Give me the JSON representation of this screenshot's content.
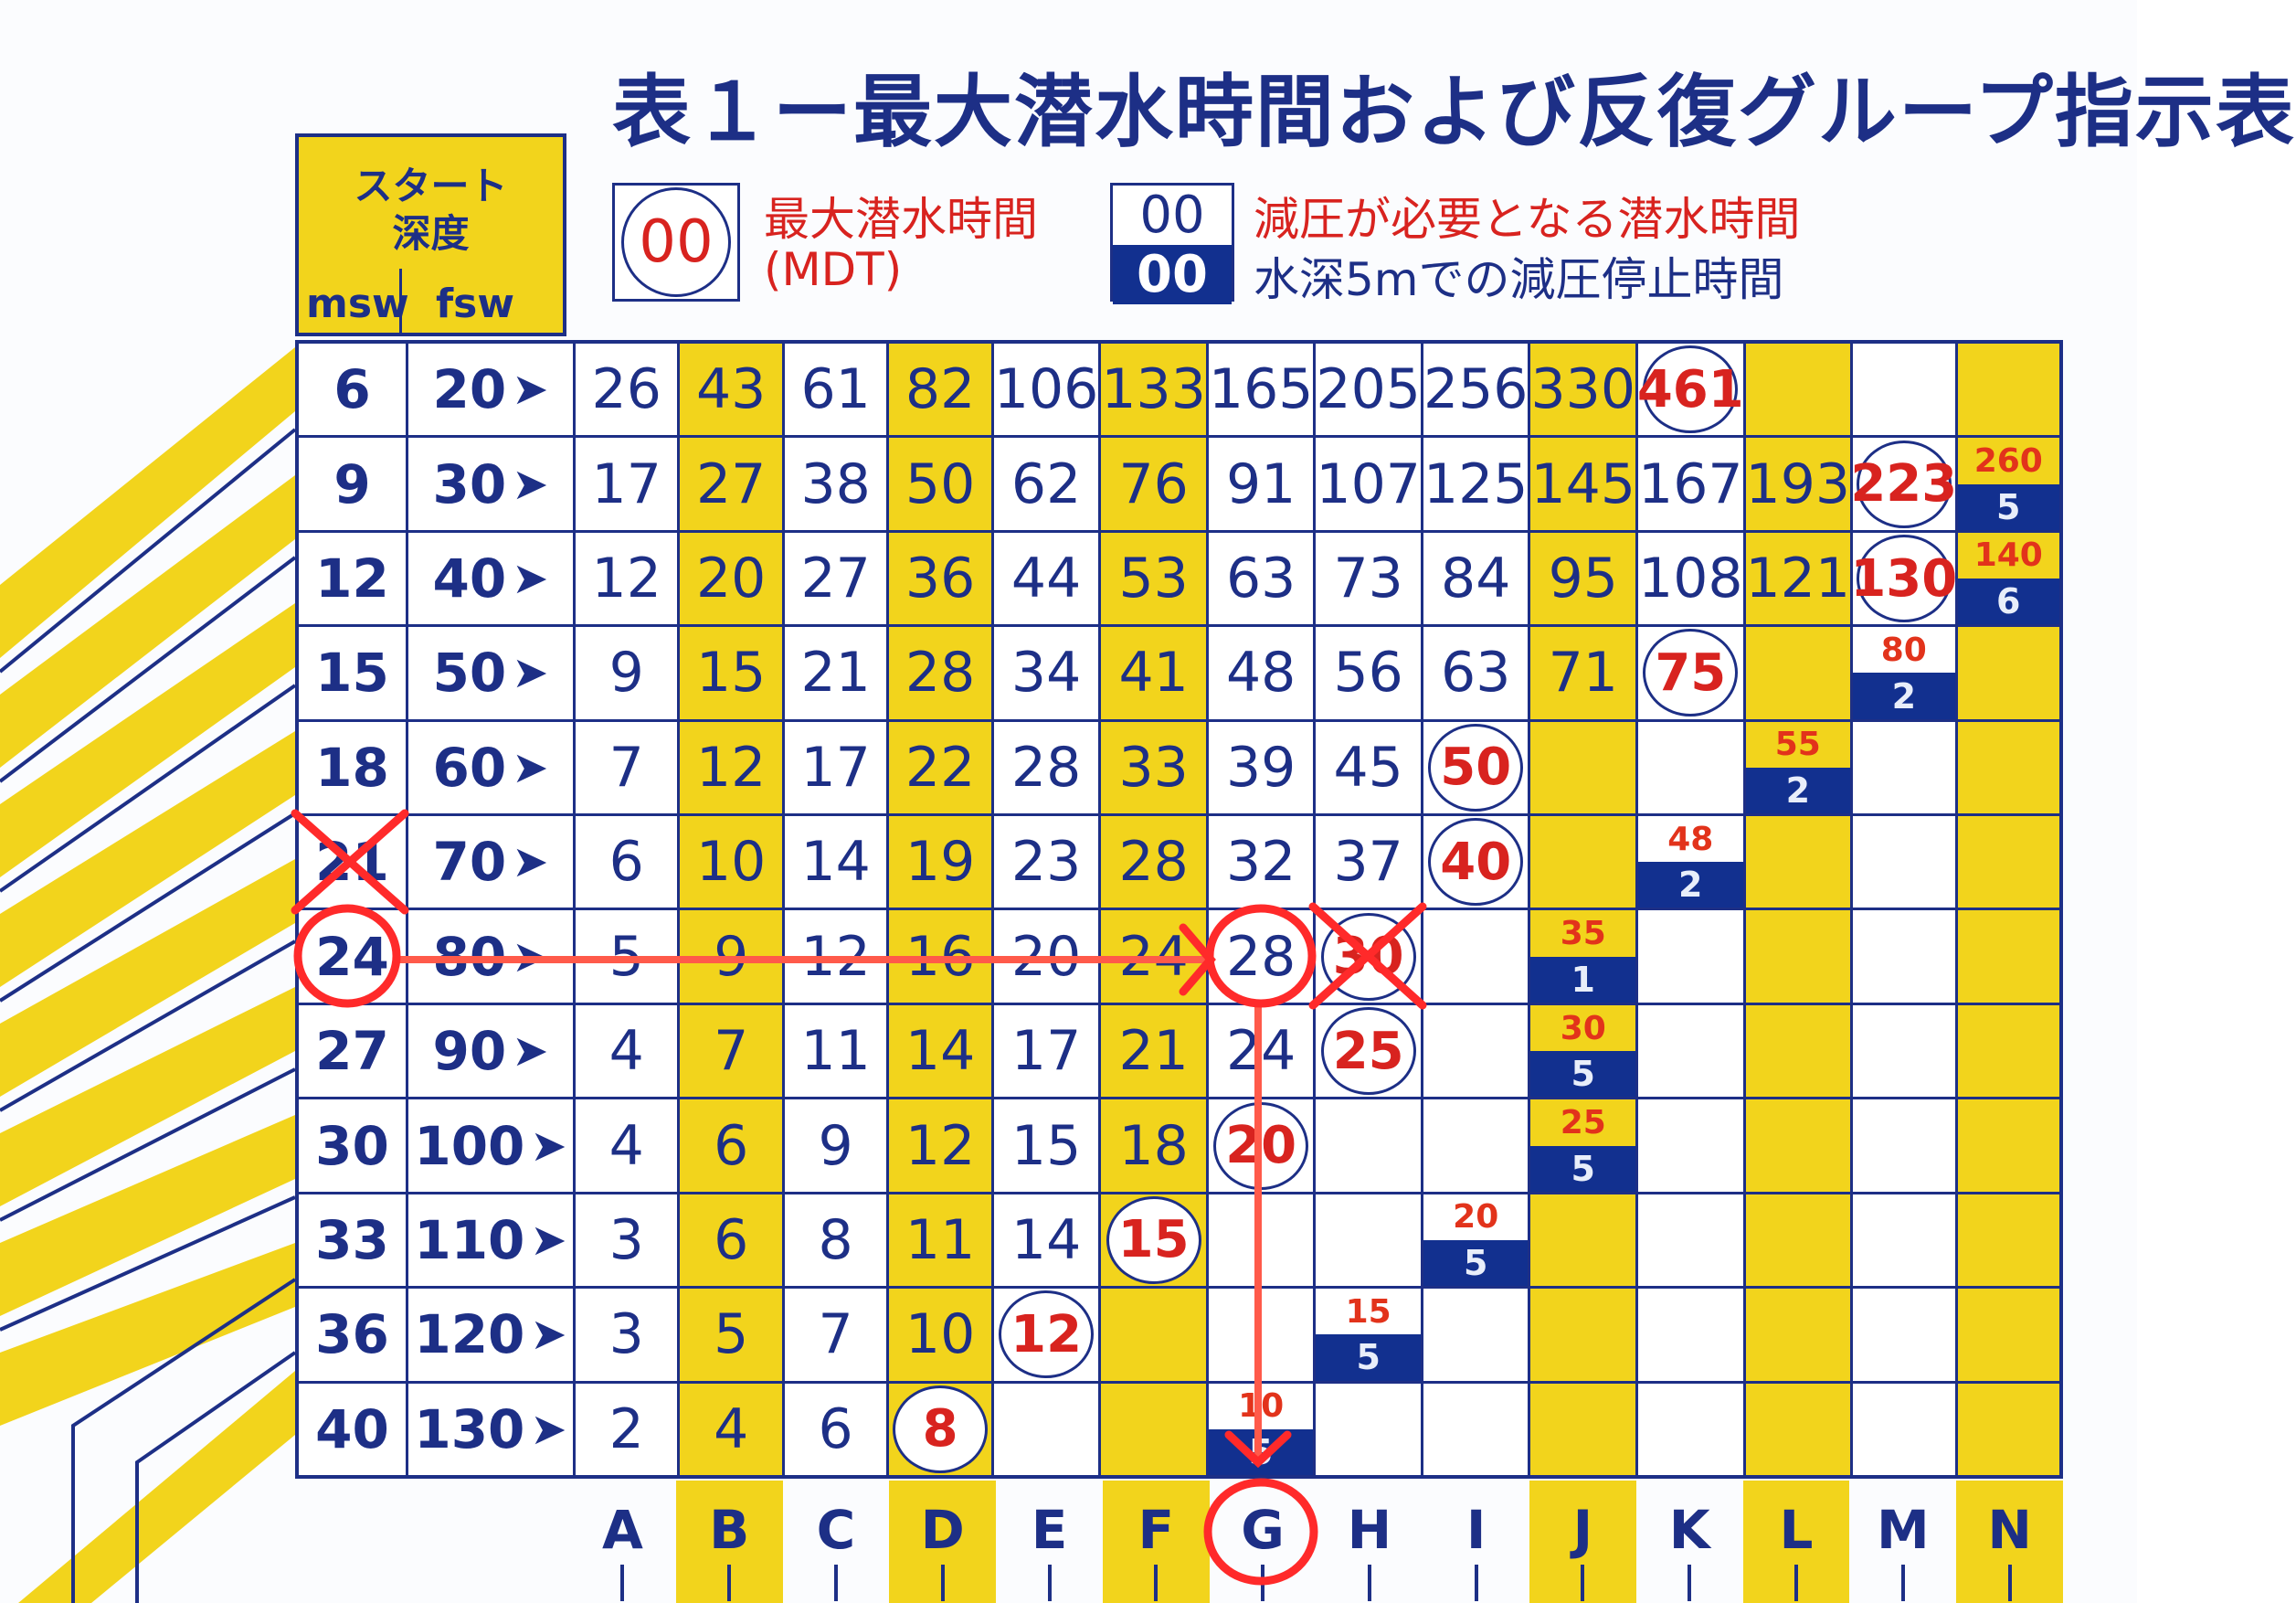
{
  "title": "表１ー最大潜水時間および反復グループ指示表",
  "header": {
    "label_line1": "スタート",
    "label_line2": "深度",
    "unit_msw": "msw",
    "unit_fsw": "fsw"
  },
  "legend": {
    "mdt_sample": "00",
    "mdt_label": "最大潜水時間",
    "mdt_abbr": "(MDT)",
    "deco_time_sample": "00",
    "deco_stop_sample": "00",
    "deco_time_label": "減圧が必要となる潜水時間",
    "deco_stop_label": "水深5mでの減圧停止時間"
  },
  "colors": {
    "navy": "#1d2f86",
    "yellow": "#f2d41c",
    "red": "#d8231f",
    "annotation": "#ff1a1a"
  },
  "groups": [
    "A",
    "B",
    "C",
    "D",
    "E",
    "F",
    "G",
    "H",
    "I",
    "J",
    "K",
    "L",
    "M",
    "N"
  ],
  "yellow_groups": [
    "B",
    "D",
    "F",
    "J",
    "L",
    "N"
  ],
  "arrow_glyph": "➤",
  "rows": [
    {
      "msw": "6",
      "fsw": "20",
      "cells": [
        "26",
        "43",
        "61",
        "82",
        "106",
        "133",
        "165",
        "205",
        "256",
        "330",
        {
          "mdt": "461"
        },
        "",
        "",
        ""
      ]
    },
    {
      "msw": "9",
      "fsw": "30",
      "cells": [
        "17",
        "27",
        "38",
        "50",
        "62",
        "76",
        "91",
        "107",
        "125",
        "145",
        "167",
        "193",
        {
          "mdt": "223"
        },
        {
          "time": "260",
          "stop": "5"
        }
      ]
    },
    {
      "msw": "12",
      "fsw": "40",
      "cells": [
        "12",
        "20",
        "27",
        "36",
        "44",
        "53",
        "63",
        "73",
        "84",
        "95",
        "108",
        "121",
        {
          "mdt": "130"
        },
        {
          "time": "140",
          "stop": "6"
        }
      ]
    },
    {
      "msw": "15",
      "fsw": "50",
      "cells": [
        "9",
        "15",
        "21",
        "28",
        "34",
        "41",
        "48",
        "56",
        "63",
        "71",
        {
          "mdt": "75"
        },
        "",
        {
          "time": "80",
          "stop": "2"
        },
        ""
      ]
    },
    {
      "msw": "18",
      "fsw": "60",
      "cells": [
        "7",
        "12",
        "17",
        "22",
        "28",
        "33",
        "39",
        "45",
        {
          "mdt": "50"
        },
        "",
        "",
        {
          "time": "55",
          "stop": "2"
        },
        "",
        ""
      ]
    },
    {
      "msw": "21",
      "fsw": "70",
      "cells": [
        "6",
        "10",
        "14",
        "19",
        "23",
        "28",
        "32",
        "37",
        {
          "mdt": "40"
        },
        "",
        {
          "time": "48",
          "stop": "2"
        },
        "",
        "",
        ""
      ]
    },
    {
      "msw": "24",
      "fsw": "80",
      "cells": [
        "5",
        "9",
        "12",
        "16",
        "20",
        "24",
        "28",
        {
          "mdt": "30"
        },
        "",
        {
          "time": "35",
          "stop": "1"
        },
        "",
        "",
        "",
        ""
      ]
    },
    {
      "msw": "27",
      "fsw": "90",
      "cells": [
        "4",
        "7",
        "11",
        "14",
        "17",
        "21",
        "24",
        {
          "mdt": "25"
        },
        "",
        {
          "time": "30",
          "stop": "5"
        },
        "",
        "",
        "",
        ""
      ]
    },
    {
      "msw": "30",
      "fsw": "100",
      "cells": [
        "4",
        "6",
        "9",
        "12",
        "15",
        "18",
        {
          "mdt": "20"
        },
        "",
        "",
        {
          "time": "25",
          "stop": "5"
        },
        "",
        "",
        "",
        ""
      ]
    },
    {
      "msw": "33",
      "fsw": "110",
      "cells": [
        "3",
        "6",
        "8",
        "11",
        "14",
        {
          "mdt": "15"
        },
        "",
        "",
        {
          "time": "20",
          "stop": "5"
        },
        "",
        "",
        "",
        "",
        ""
      ]
    },
    {
      "msw": "36",
      "fsw": "120",
      "cells": [
        "3",
        "5",
        "7",
        "10",
        {
          "mdt": "12"
        },
        "",
        "",
        {
          "time": "15",
          "stop": "5"
        },
        "",
        "",
        "",
        "",
        "",
        ""
      ]
    },
    {
      "msw": "40",
      "fsw": "130",
      "cells": [
        "2",
        "4",
        "6",
        {
          "mdt": "8"
        },
        "",
        "",
        {
          "time": "10",
          "stop": "5"
        },
        "",
        "",
        "",
        "",
        "",
        "",
        ""
      ]
    }
  ]
}
